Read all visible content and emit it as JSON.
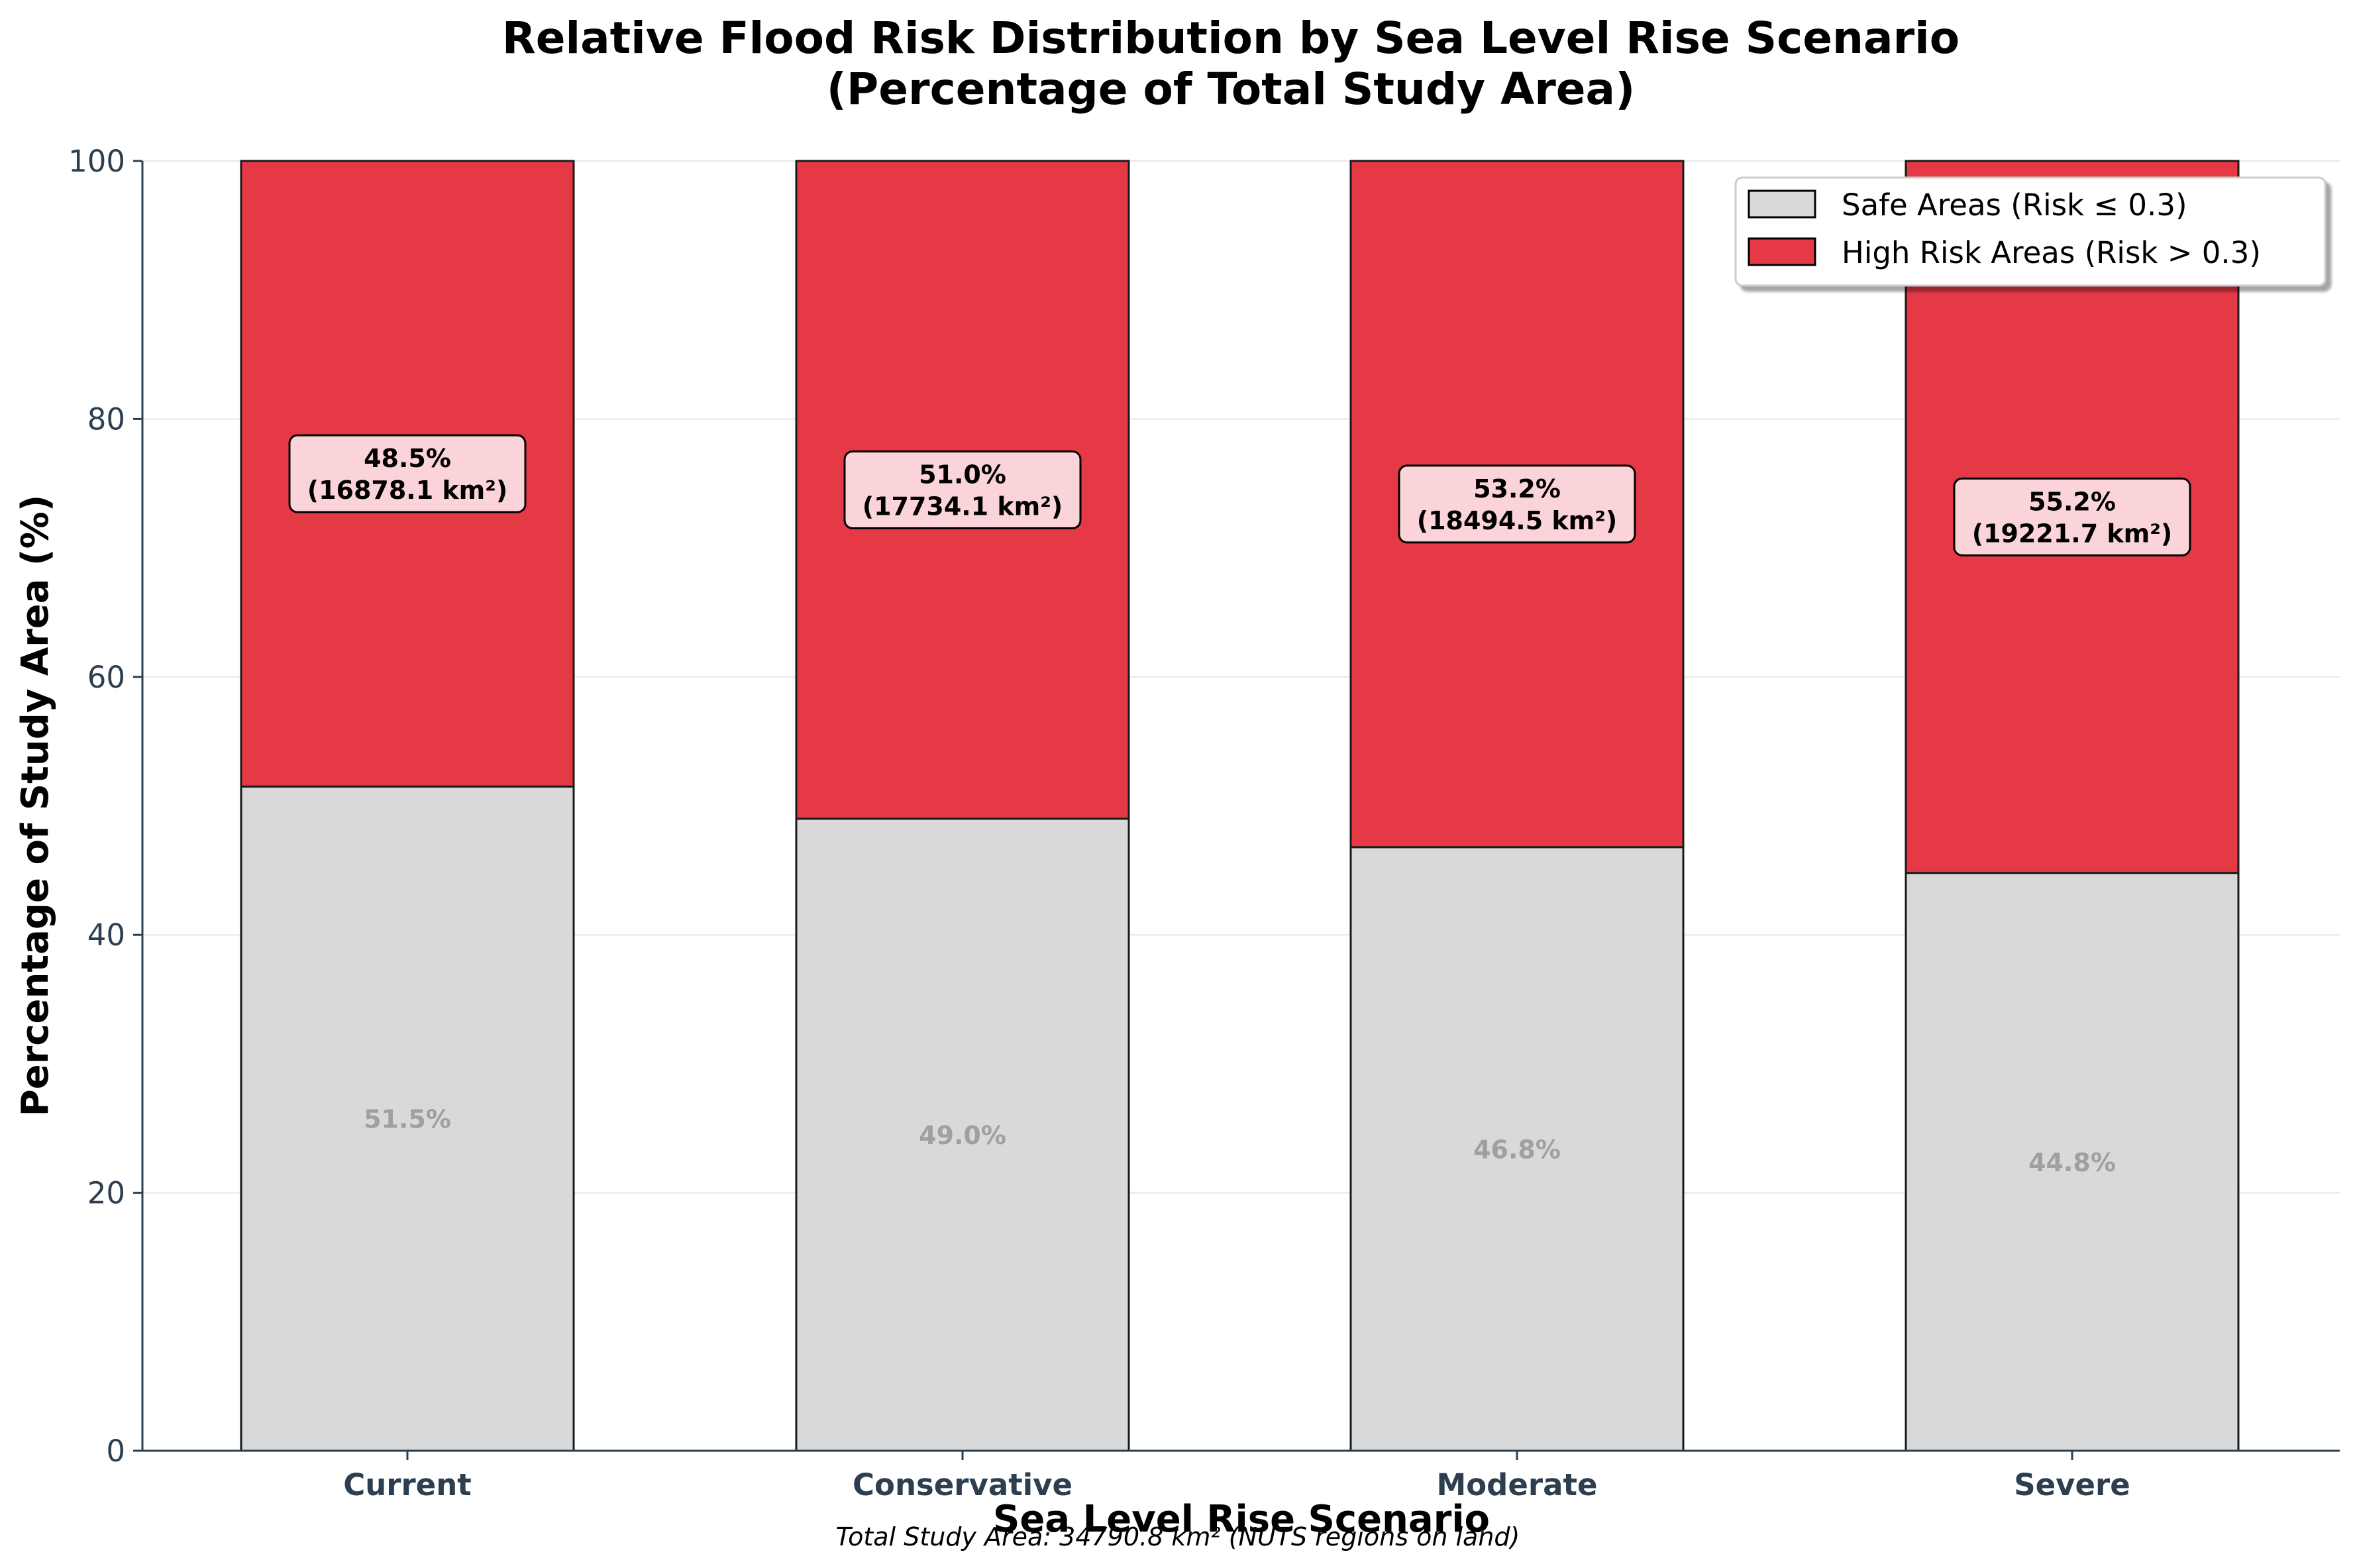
{
  "chart_data": {
    "type": "bar",
    "stacked": true,
    "title_lines": [
      "Relative Flood Risk Distribution by Sea Level Rise Scenario",
      "(Percentage of Total Study Area)"
    ],
    "xlabel": "Sea Level Rise Scenario",
    "ylabel": "Percentage of Study Area (%)",
    "ylim": [
      0,
      100
    ],
    "yticks": [
      "0",
      "20",
      "40",
      "60",
      "80",
      "100"
    ],
    "grid": "y",
    "legend_position": "top-right",
    "categories": [
      "Current",
      "Conservative",
      "Moderate",
      "Severe"
    ],
    "series": [
      {
        "name": "Safe Areas (Risk ≤ 0.3)",
        "color": "#d9d9d9",
        "values": [
          51.5,
          49.0,
          46.8,
          44.8
        ],
        "labels": [
          "51.5%",
          "49.0%",
          "46.8%",
          "44.8%"
        ]
      },
      {
        "name": "High Risk Areas (Risk > 0.3)",
        "color": "#e63946",
        "values": [
          48.5,
          51.0,
          53.2,
          55.2
        ],
        "labels": [
          [
            "48.5%",
            "(16878.1 km²)"
          ],
          [
            "51.0%",
            "(17734.1 km²)"
          ],
          [
            "53.2%",
            "(18494.5 km²)"
          ],
          [
            "55.2%",
            "(19221.7 km²)"
          ]
        ]
      }
    ],
    "annotation": "Total Study Area: 34790.8 km² (NUTS regions on land)"
  }
}
